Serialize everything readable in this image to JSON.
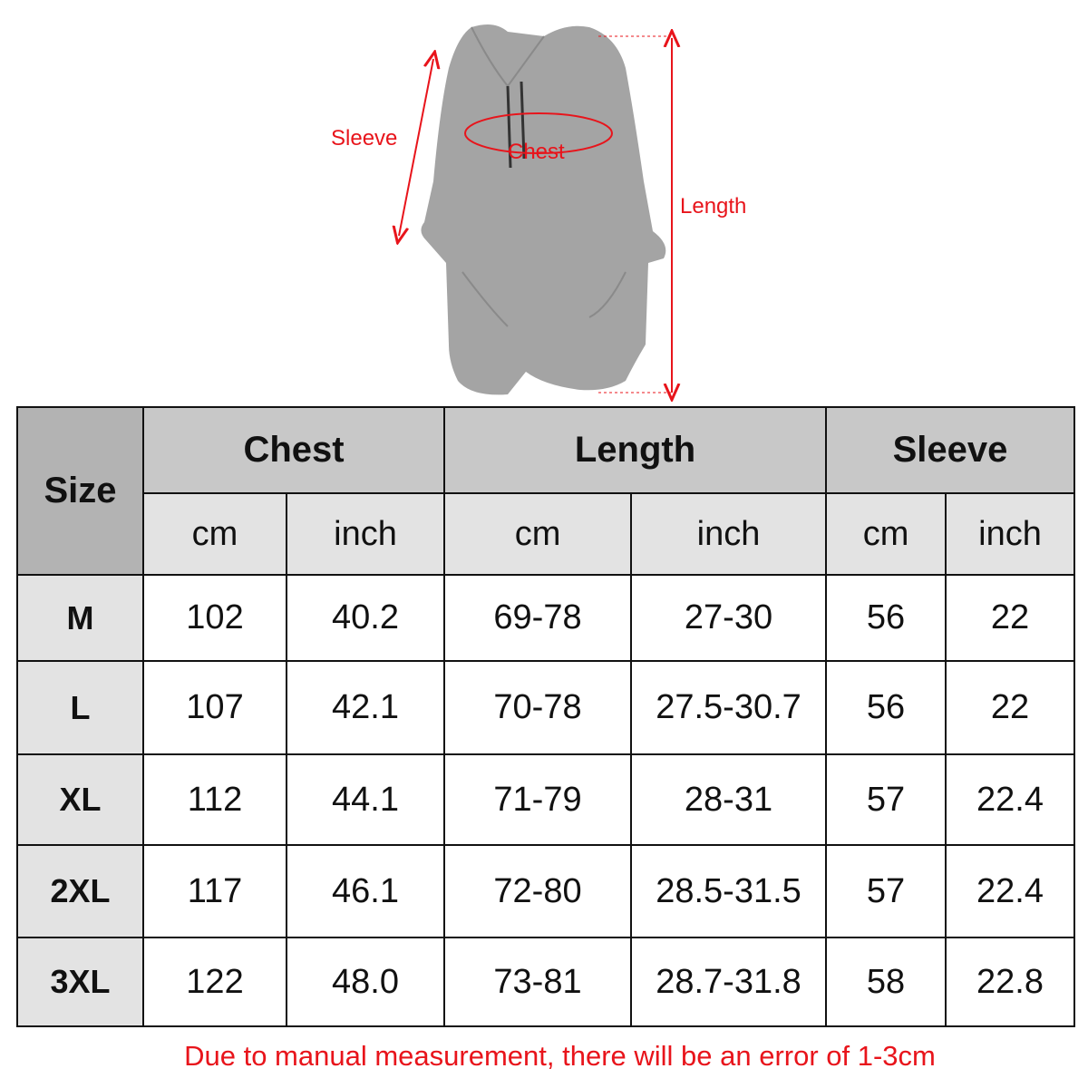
{
  "figure": {
    "labels": {
      "sleeve": "Sleeve",
      "chest": "Chest",
      "length": "Length"
    },
    "annotation_color": "#e8141b",
    "garment_color": "#a4a4a4"
  },
  "table": {
    "size_header": "Size",
    "groups": [
      "Chest",
      "Length",
      "Sleeve"
    ],
    "units": [
      "cm",
      "inch",
      "cm",
      "inch",
      "cm",
      "inch"
    ],
    "rows": [
      {
        "size": "M",
        "values": [
          "102",
          "40.2",
          "69-78",
          "27-30",
          "56",
          "22"
        ]
      },
      {
        "size": "L",
        "values": [
          "107",
          "42.1",
          "70-78",
          "27.5-30.7",
          "56",
          "22"
        ]
      },
      {
        "size": "XL",
        "values": [
          "112",
          "44.1",
          "71-79",
          "28-31",
          "57",
          "22.4"
        ]
      },
      {
        "size": "2XL",
        "values": [
          "117",
          "46.1",
          "72-80",
          "28.5-31.5",
          "57",
          "22.4"
        ]
      },
      {
        "size": "3XL",
        "values": [
          "122",
          "48.0",
          "73-81",
          "28.7-31.8",
          "58",
          "22.8"
        ]
      }
    ]
  },
  "note": "Due to manual measurement, there will be an error of 1-3cm"
}
